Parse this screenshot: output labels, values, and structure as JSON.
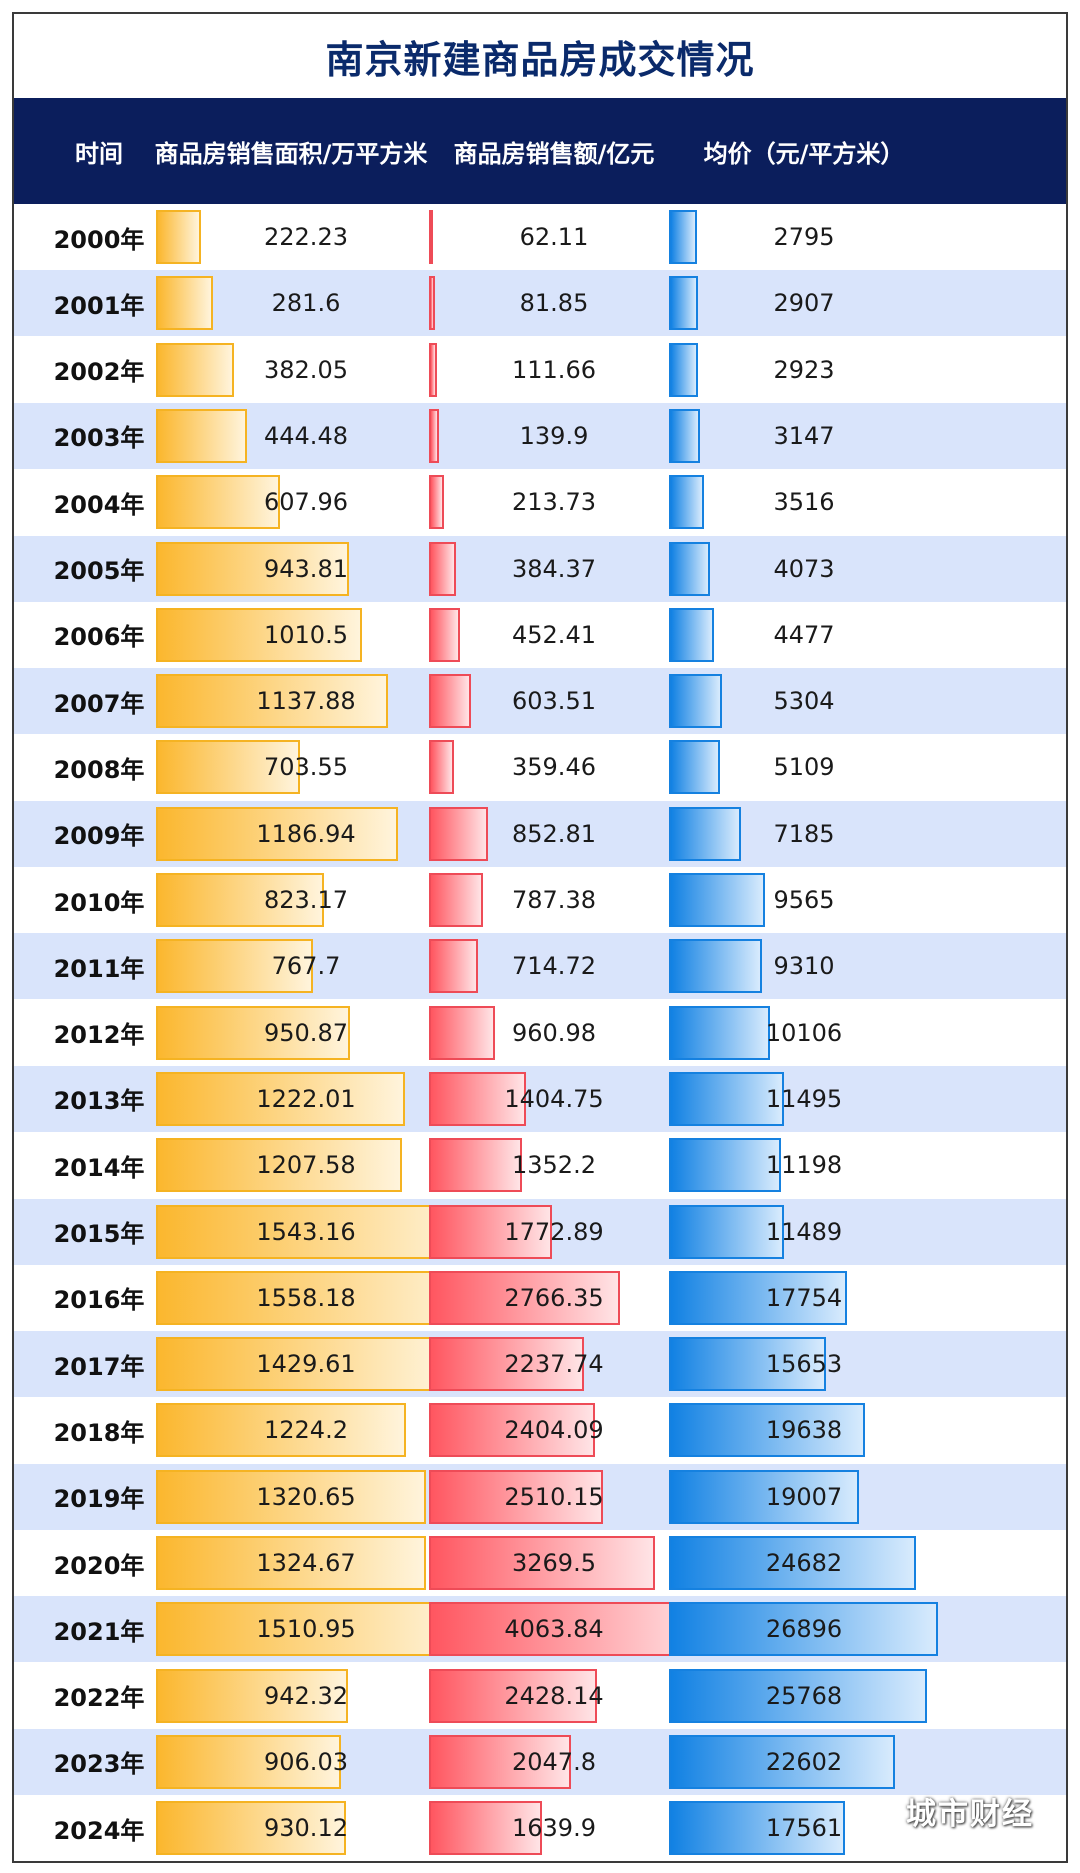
{
  "title": "南京新建商品房成交情况",
  "watermark": "城市财经",
  "colors": {
    "header_bg": "#0b1e5c",
    "title": "#0a2a6b",
    "row_alt": "#d9e4fb",
    "area": "#fbb72e",
    "sales": "#ff5660",
    "price": "#1181e3"
  },
  "headers": {
    "time": "时间",
    "area": "商品房销售面积/万平方米",
    "sales": "商品房销售额/亿元",
    "price": "均价（元/平方米）"
  },
  "chart_data": {
    "type": "table",
    "title": "南京新建商品房成交情况",
    "categories": [
      "2000年",
      "2001年",
      "2002年",
      "2003年",
      "2004年",
      "2005年",
      "2006年",
      "2007年",
      "2008年",
      "2009年",
      "2010年",
      "2011年",
      "2012年",
      "2013年",
      "2014年",
      "2015年",
      "2016年",
      "2017年",
      "2018年",
      "2019年",
      "2020年",
      "2021年",
      "2022年",
      "2023年",
      "2024年"
    ],
    "series": [
      {
        "name": "商品房销售面积/万平方米",
        "key": "area",
        "labels": [
          "222.23",
          "281.6",
          "382.05",
          "444.48",
          "607.96",
          "943.81",
          "1010.5",
          "1137.88",
          "703.55",
          "1186.94",
          "823.17",
          "767.7",
          "950.87",
          "1222.01",
          "1207.58",
          "1543.16",
          "1558.18",
          "1429.61",
          "1224.2",
          "1320.65",
          "1324.67",
          "1510.95",
          "942.32",
          "906.03",
          "930.12"
        ],
        "values": [
          222.23,
          281.6,
          382.05,
          444.48,
          607.96,
          943.81,
          1010.5,
          1137.88,
          703.55,
          1186.94,
          823.17,
          767.7,
          950.87,
          1222.01,
          1207.58,
          1543.16,
          1558.18,
          1429.61,
          1224.2,
          1320.65,
          1324.67,
          1510.95,
          942.32,
          906.03,
          930.12
        ]
      },
      {
        "name": "商品房销售额/亿元",
        "key": "sales",
        "labels": [
          "62.11",
          "81.85",
          "111.66",
          "139.9",
          "213.73",
          "384.37",
          "452.41",
          "603.51",
          "359.46",
          "852.81",
          "787.38",
          "714.72",
          "960.98",
          "1404.75",
          "1352.2",
          "1772.89",
          "2766.35",
          "2237.74",
          "2404.09",
          "2510.15",
          "3269.5",
          "4063.84",
          "2428.14",
          "2047.8",
          "1639.9"
        ],
        "values": [
          62.11,
          81.85,
          111.66,
          139.9,
          213.73,
          384.37,
          452.41,
          603.51,
          359.46,
          852.81,
          787.38,
          714.72,
          960.98,
          1404.75,
          1352.2,
          1772.89,
          2766.35,
          2237.74,
          2404.09,
          2510.15,
          3269.5,
          4063.84,
          2428.14,
          2047.8,
          1639.9
        ]
      },
      {
        "name": "均价（元/平方米）",
        "key": "price",
        "labels": [
          "2795",
          "2907",
          "2923",
          "3147",
          "3516",
          "4073",
          "4477",
          "5304",
          "5109",
          "7185",
          "9565",
          "9310",
          "10106",
          "11495",
          "11198",
          "11489",
          "17754",
          "15653",
          "19638",
          "19007",
          "24682",
          "26896",
          "25768",
          "22602",
          "17561"
        ],
        "values": [
          2795,
          2907,
          2923,
          3147,
          3516,
          4073,
          4477,
          5304,
          5109,
          7185,
          9565,
          9310,
          10106,
          11495,
          11198,
          11489,
          17754,
          15653,
          19638,
          19007,
          24682,
          26896,
          25768,
          22602,
          17561
        ]
      }
    ]
  }
}
